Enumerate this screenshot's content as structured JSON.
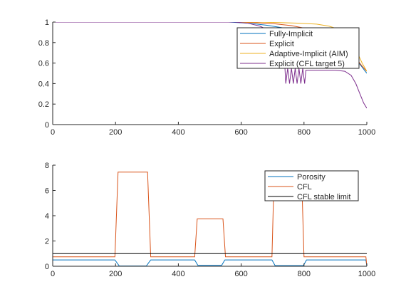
{
  "chart_data": [
    {
      "type": "line",
      "xlim": [
        0,
        1000
      ],
      "ylim": [
        0,
        1
      ],
      "xticks": [
        "0",
        "200",
        "400",
        "600",
        "800",
        "1000"
      ],
      "yticks": [
        "0",
        "0.2",
        "0.4",
        "0.6",
        "0.8",
        "1"
      ],
      "legend_position": "top-right",
      "grid": false,
      "series": [
        {
          "name": "Fully-Implicit",
          "color": "#0072BD",
          "x": [
            0,
            560,
            620,
            680,
            740,
            800,
            850,
            900,
            940,
            970,
            985,
            1000
          ],
          "y": [
            1,
            1,
            0.99,
            0.97,
            0.94,
            0.9,
            0.85,
            0.78,
            0.7,
            0.62,
            0.56,
            0.5
          ]
        },
        {
          "name": "Explicit",
          "color": "#D95319",
          "x": [
            0,
            580,
            640,
            700,
            760,
            820,
            870,
            910,
            945,
            970,
            985,
            1000
          ],
          "y": [
            1,
            1,
            0.995,
            0.985,
            0.965,
            0.93,
            0.88,
            0.8,
            0.72,
            0.63,
            0.57,
            0.52
          ]
        },
        {
          "name": "Adaptive-Implicit (AIM)",
          "color": "#EDB120",
          "x": [
            0,
            600,
            660,
            720,
            780,
            840,
            880,
            910,
            935,
            955,
            970,
            985,
            1000
          ],
          "y": [
            1,
            1,
            1,
            0.995,
            0.99,
            0.98,
            0.96,
            0.93,
            0.88,
            0.8,
            0.7,
            0.6,
            0.52
          ]
        },
        {
          "name": "Explicit (CFL target 5)",
          "color": "#7E2F8E",
          "x": [
            0,
            580,
            620,
            660,
            700,
            720,
            735,
            742,
            748,
            754,
            760,
            766,
            772,
            778,
            784,
            790,
            796,
            802,
            806,
            850,
            900,
            930,
            950,
            965,
            978,
            990,
            1000
          ],
          "y": [
            1,
            1,
            0.99,
            0.96,
            0.9,
            0.85,
            0.8,
            0.4,
            0.55,
            0.4,
            0.55,
            0.4,
            0.55,
            0.4,
            0.55,
            0.4,
            0.55,
            0.4,
            0.53,
            0.53,
            0.53,
            0.52,
            0.48,
            0.4,
            0.3,
            0.21,
            0.16
          ]
        }
      ]
    },
    {
      "type": "line",
      "xlim": [
        0,
        1000
      ],
      "ylim": [
        0,
        8
      ],
      "xticks": [
        "0",
        "200",
        "400",
        "600",
        "800",
        "1000"
      ],
      "yticks": [
        "0",
        "2",
        "4",
        "6",
        "8"
      ],
      "legend_position": "top-right",
      "grid": false,
      "series": [
        {
          "name": "Porosity",
          "color": "#0072BD",
          "x": [
            0,
            198,
            212,
            298,
            312,
            452,
            462,
            538,
            548,
            698,
            708,
            798,
            808,
            997,
            1000
          ],
          "y": [
            0.5,
            0.5,
            0.02,
            0.02,
            0.5,
            0.5,
            0.08,
            0.08,
            0.5,
            0.5,
            0.05,
            0.05,
            0.5,
            0.5,
            0.02
          ]
        },
        {
          "name": "CFL",
          "color": "#D95319",
          "x": [
            0,
            198,
            208,
            302,
            312,
            452,
            460,
            542,
            550,
            698,
            705,
            792,
            800,
            997,
            1000
          ],
          "y": [
            0.75,
            0.75,
            7.45,
            7.45,
            0.75,
            0.75,
            3.75,
            3.75,
            0.75,
            0.75,
            7.45,
            7.45,
            0.75,
            0.75,
            0.05
          ]
        },
        {
          "name": "CFL stable limit",
          "color": "#000000",
          "x": [
            0,
            1000
          ],
          "y": [
            1,
            1
          ]
        }
      ]
    }
  ]
}
